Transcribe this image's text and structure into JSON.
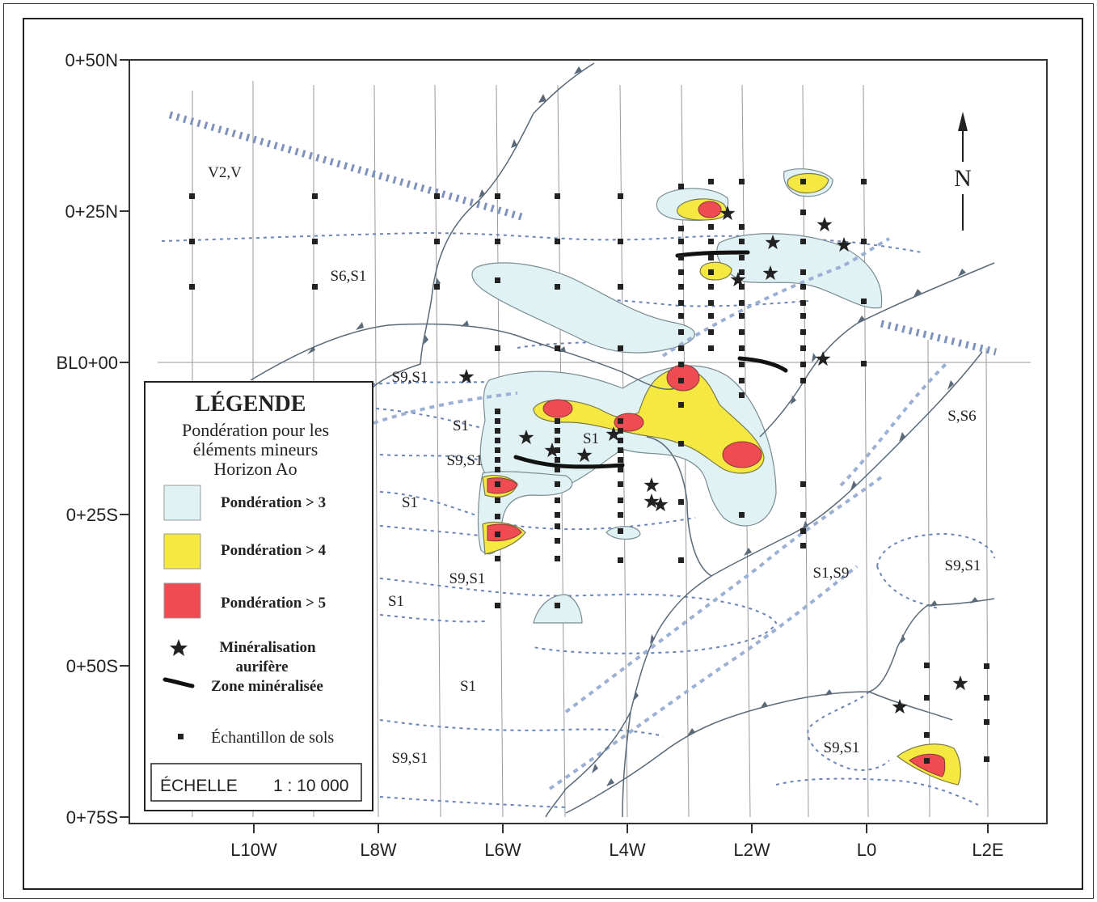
{
  "map": {
    "north_label": "N",
    "y_axis_labels": [
      "0+50N",
      "0+25N",
      "BL0+00",
      "0+25S",
      "0+50S",
      "0+75S"
    ],
    "x_axis_labels": [
      "L10W",
      "L8W",
      "L6W",
      "L4W",
      "L2W",
      "L0",
      "L2E"
    ],
    "unit_labels": [
      "V2,V",
      "S6,S1",
      "S9,S1",
      "S1",
      "S1",
      "S9,S1",
      "S1",
      "S9,S1",
      "S1",
      "S1",
      "S9,S1",
      "S,S6",
      "S9,S1",
      "S1,S9",
      "S9,S1"
    ]
  },
  "legend": {
    "title": "LÉGENDE",
    "subtitle": [
      "Pondération pour les",
      "éléments mineurs",
      "Horizon Ao"
    ],
    "items": [
      {
        "label": "Pondération > 3",
        "color": "#e1f2f5"
      },
      {
        "label": "Pondération > 4",
        "color": "#f5e941"
      },
      {
        "label": "Pondération > 5",
        "color": "#ee4b52"
      }
    ],
    "mineralisation": [
      "Minéralisation",
      "aurifère"
    ],
    "zone": "Zone minéralisée",
    "sample": "Échantillon de sols",
    "scale_label": "ÉCHELLE",
    "scale_value": "1 : 10 000"
  },
  "colors": {
    "anomaly_3": "#e1f2f5",
    "anomaly_4": "#f5e941",
    "anomaly_5": "#ee4b52",
    "stream": "#5a6a78",
    "contact": "#5b7ab5",
    "fault": "#8aa0c8"
  }
}
